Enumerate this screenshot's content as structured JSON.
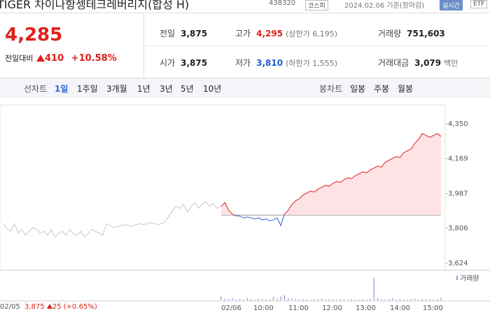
{
  "header": {
    "title": "TIGER 차이나항셍테크레버리지(합성 H)",
    "code": "438320",
    "market": "코스피",
    "date": "2024.02.06 기준(장마감)",
    "realtime": "실시간",
    "etf": "ETF"
  },
  "price": {
    "current": "4,285",
    "change_label": "전일대비",
    "change": "410",
    "rate": "+10.58%"
  },
  "stats": [
    {
      "label": "전일",
      "value": "3,875"
    },
    {
      "label": "고가",
      "value": "4,295",
      "note": "(상한가 6,195)",
      "color": "#e0201c"
    },
    {
      "label": "거래량",
      "value": "751,603"
    },
    {
      "label": "시가",
      "value": "3,875"
    },
    {
      "label": "저가",
      "value": "3,810",
      "note": "(하한가 1,555)",
      "color": "#1f5fd0"
    },
    {
      "label": "거래대금",
      "value": "3,079",
      "unit": "백만"
    }
  ],
  "tabs": {
    "line": "선차트",
    "periods": [
      "1일",
      "1주일",
      "3개월",
      "1년",
      "3년",
      "5년",
      "10년"
    ],
    "candle": "봉차트",
    "candle_periods": [
      "일봉",
      "주봉",
      "월봉"
    ]
  },
  "chart_data": {
    "type": "line",
    "ylim": [
      3624,
      4350
    ],
    "yticks": [
      {
        "value": 4350,
        "label": "4,350"
      },
      {
        "value": 4169,
        "label": "4,169"
      },
      {
        "value": 3987,
        "label": "3,987"
      },
      {
        "value": 3806,
        "label": "3,806"
      },
      {
        "value": 3624,
        "label": "3,624"
      }
    ],
    "x_labels": [
      "02/05",
      "02/06",
      "10:00",
      "11:00",
      "12:00",
      "13:00",
      "14:00",
      "15:00"
    ],
    "baseline": 3875,
    "previous_day": {
      "color": "#c8c8c8",
      "values": [
        3830,
        3800,
        3790,
        3830,
        3780,
        3800,
        3770,
        3790,
        3810,
        3800,
        3780,
        3790,
        3770,
        3800,
        3760,
        3780,
        3790,
        3770,
        3800,
        3780,
        3770,
        3790,
        3760,
        3780,
        3800,
        3790,
        3780,
        3770,
        3830,
        3820,
        3810,
        3815,
        3820,
        3825,
        3820,
        3815,
        3825,
        3830,
        3825,
        3830,
        3835,
        3830,
        3825,
        3830,
        3840,
        3870,
        3900,
        3920,
        3910,
        3930,
        3890,
        3920,
        3940,
        3910,
        3930,
        3945,
        3920,
        3935,
        3910,
        3920
      ]
    },
    "today": {
      "up_color": "#e0201c",
      "down_color": "#2a63d4",
      "fill": "#fde3e6",
      "values": [
        3920,
        3940,
        3900,
        3880,
        3870,
        3870,
        3860,
        3865,
        3860,
        3855,
        3860,
        3850,
        3855,
        3845,
        3850,
        3860,
        3820,
        3880,
        3900,
        3930,
        3950,
        3960,
        3980,
        3990,
        4000,
        3995,
        4010,
        4020,
        4030,
        4025,
        4040,
        4050,
        4045,
        4060,
        4070,
        4065,
        4080,
        4090,
        4100,
        4095,
        4110,
        4120,
        4130,
        4125,
        4150,
        4160,
        4170,
        4180,
        4175,
        4200,
        4210,
        4220,
        4250,
        4270,
        4300,
        4290,
        4280,
        4290,
        4300,
        4285
      ]
    },
    "volume": {
      "label": "거래량",
      "color": "#9b8fd6",
      "ylim": [
        0,
        60000
      ],
      "values": [
        9000,
        4000,
        3000,
        5000,
        2000,
        3000,
        2000,
        6000,
        3000,
        2000,
        4000,
        3000,
        2000,
        3000,
        8000,
        4000,
        9000,
        12000,
        5000,
        4000,
        3000,
        2000,
        3000,
        2000,
        2000,
        3000,
        2000,
        4000,
        2000,
        3000,
        2000,
        2000,
        3000,
        2000,
        2000,
        3000,
        2000,
        2000,
        3000,
        2000,
        4000,
        52000,
        6000,
        3000,
        2000,
        3000,
        5000,
        2000,
        3000,
        2000,
        2000,
        3000,
        4000,
        2000,
        3000,
        2000,
        3000,
        2000,
        3000,
        6000
      ]
    }
  },
  "footer": {
    "date": "02/05",
    "price": "3,875",
    "change": "25",
    "rate": "(+0.65%)"
  }
}
